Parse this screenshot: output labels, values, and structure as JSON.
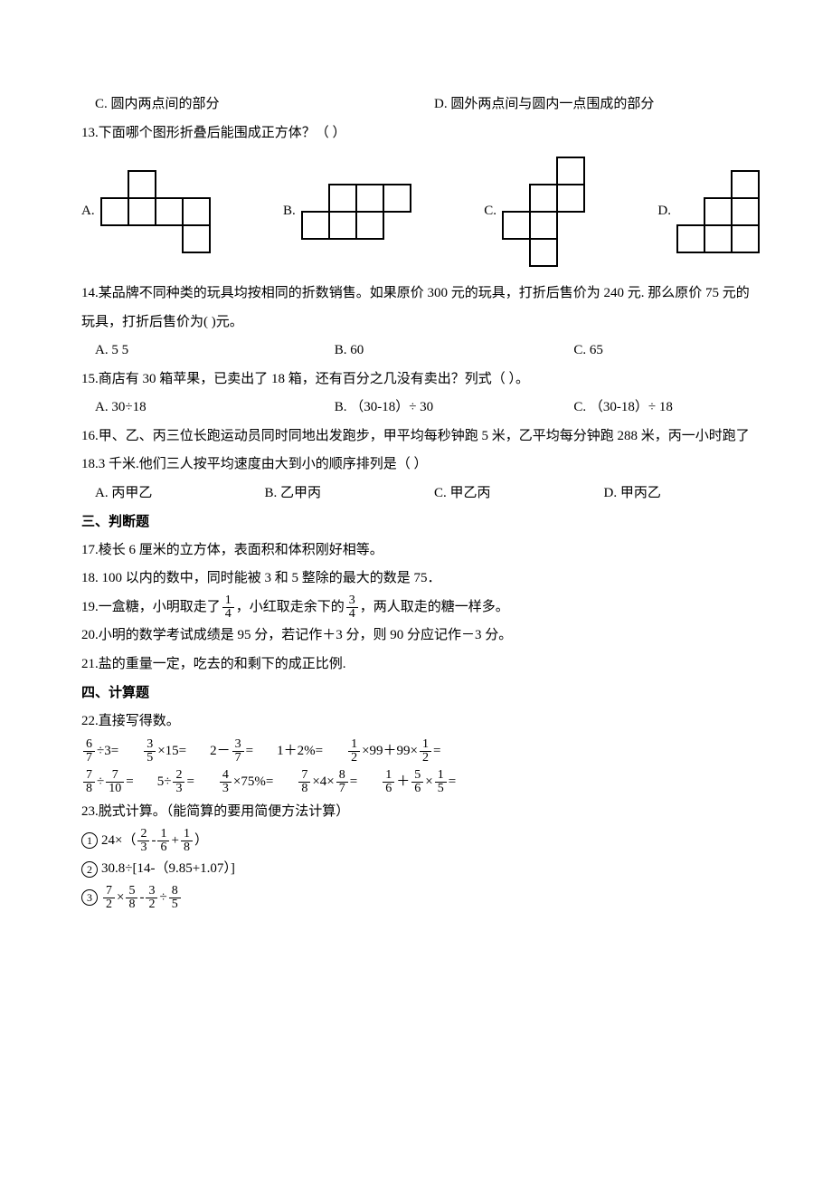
{
  "q12_opts": {
    "c": "C. 圆内两点间的部分",
    "d": "D. 圆外两点间与圆内一点围成的部分"
  },
  "q13": {
    "stem": "13.下面哪个图形折叠后能围成正方体？（  ）",
    "labels": {
      "a": "A.",
      "b": "B.",
      "c": "C.",
      "d": "D."
    },
    "cell": 30,
    "stroke": "#000000",
    "strokeWidth": 2
  },
  "q14": {
    "stem": "14.某品牌不同种类的玩具均按相同的折数销售。如果原价 300 元的玩具，打折后售价为 240 元. 那么原价 75 元的玩具，打折后售价为(   )元。",
    "opts": {
      "a": "A. 5 5",
      "b": "B. 60",
      "c": "C. 65"
    }
  },
  "q15": {
    "stem": "15.商店有 30 箱苹果，已卖出了 18 箱，还有百分之几没有卖出？列式（    ）。",
    "opts": {
      "a": "A. 30÷18",
      "b": "B. （30-18）÷ 30",
      "c": "C. （30-18）÷ 18"
    }
  },
  "q16": {
    "stem": "16.甲、乙、丙三位长跑运动员同时同地出发跑步，甲平均每秒钟跑 5 米，乙平均每分钟跑 288 米，丙一小时跑了 18.3 千米.他们三人按平均速度由大到小的顺序排列是（    ）",
    "opts": {
      "a": "A. 丙甲乙",
      "b": "B. 乙甲丙",
      "c": "C. 甲乙丙",
      "d": "D. 甲丙乙"
    }
  },
  "sec3": "三、判断题",
  "q17": "17.棱长 6 厘米的立方体，表面积和体积刚好相等。",
  "q18": "18. 100 以内的数中，同时能被 3 和 5 整除的最大的数是 75．",
  "q19": {
    "p1": "19.一盒糖，小明取走了 ",
    "f1": {
      "n": "1",
      "d": "4"
    },
    "p2": "，小红取走余下的 ",
    "f2": {
      "n": "3",
      "d": "4"
    },
    "p3": "，两人取走的糖一样多。"
  },
  "q20": "20.小明的数学考试成绩是 95 分，若记作＋3 分，则 90 分应记作－3 分。",
  "q21": "21.盐的重量一定，吃去的和剩下的成正比例.",
  "sec4": "四、计算题",
  "q22": {
    "stem": "22.直接写得数。",
    "row1": {
      "e1": {
        "f": {
          "n": "6",
          "d": "7"
        },
        "t": "÷3="
      },
      "e2": {
        "f": {
          "n": "3",
          "d": "5"
        },
        "t": "×15="
      },
      "e3": {
        "pre": "2－ ",
        "f": {
          "n": "3",
          "d": "7"
        },
        "t": "="
      },
      "e4": "1＋2%=",
      "e5": {
        "f1": {
          "n": "1",
          "d": "2"
        },
        "mid": "×99＋99× ",
        "f2": {
          "n": "1",
          "d": "2"
        },
        "t": "="
      }
    },
    "row2": {
      "e1": {
        "f1": {
          "n": "7",
          "d": "8"
        },
        "op": "÷ ",
        "f2": {
          "n": "7",
          "d": "10"
        },
        "t": "="
      },
      "e2": {
        "pre": "5÷ ",
        "f": {
          "n": "2",
          "d": "3"
        },
        "t": "="
      },
      "e3": {
        "f": {
          "n": "4",
          "d": "3"
        },
        "t": "×75%="
      },
      "e4": {
        "f1": {
          "n": "7",
          "d": "8"
        },
        "mid": "×4× ",
        "f2": {
          "n": "8",
          "d": "7"
        },
        "t": "="
      },
      "e5": {
        "f1": {
          "n": "1",
          "d": "6"
        },
        "op1": "＋ ",
        "f2": {
          "n": "5",
          "d": "6"
        },
        "op2": "× ",
        "f3": {
          "n": "1",
          "d": "5"
        },
        "t": "="
      }
    }
  },
  "q23": {
    "stem": "23.脱式计算。（能简算的要用简便方法计算）",
    "c1": {
      "num": "1",
      "pre": "24×（ ",
      "f1": {
        "n": "2",
        "d": "3"
      },
      "op1": "-",
      "f2": {
        "n": "1",
        "d": "6"
      },
      "op2": "+",
      "f3": {
        "n": "1",
        "d": "8"
      },
      "post": "）"
    },
    "c2": {
      "num": "2",
      "text": "30.8÷[14-（9.85+1.07）]"
    },
    "c3": {
      "num": "3",
      "f1": {
        "n": "7",
        "d": "2"
      },
      "op1": " × ",
      "f2": {
        "n": "5",
        "d": "8"
      },
      "op2": "-",
      "f3": {
        "n": "3",
        "d": "2"
      },
      "op3": " ÷ ",
      "f4": {
        "n": "8",
        "d": "5"
      }
    }
  }
}
